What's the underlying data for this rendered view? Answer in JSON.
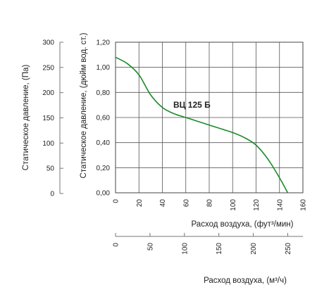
{
  "chart_data": {
    "type": "line",
    "series": [
      {
        "name": "ВЦ 125 Б",
        "color": "#1a8a2a",
        "x": [
          0,
          10,
          20,
          30,
          40,
          50,
          60,
          70,
          80,
          90,
          100,
          110,
          120,
          130,
          140,
          147
        ],
        "y": [
          1.08,
          1.03,
          0.94,
          0.78,
          0.68,
          0.63,
          0.6,
          0.57,
          0.54,
          0.51,
          0.48,
          0.44,
          0.38,
          0.27,
          0.12,
          0.0
        ]
      }
    ],
    "xlabel_top": "Расход воздуха, (фут³/мин)",
    "x_ticks": [
      "0",
      "20",
      "40",
      "60",
      "80",
      "100",
      "120",
      "140",
      "160"
    ],
    "xlim": [
      0,
      160
    ],
    "ylabel_inner": "Статическое давление, (дюйм вод. ст.)",
    "y_ticks": [
      "0,00",
      "0,20",
      "0,40",
      "0,60",
      "0,80",
      "1,00",
      "1,20"
    ],
    "ylim": [
      0,
      1.2
    ],
    "ylabel_outer": "Статическое давление, (Па)",
    "y2_ticks": [
      "0",
      "50",
      "100",
      "150",
      "200",
      "250",
      "300"
    ],
    "y2lim": [
      0,
      300
    ],
    "xlabel_bottom": "Расход воздуха, (м³/ч)",
    "x2_ticks": [
      "0",
      "50",
      "100",
      "150",
      "200",
      "250"
    ],
    "x2_values": [
      0,
      50,
      100,
      150,
      200,
      250
    ],
    "x2lim": [
      0,
      272
    ],
    "grid": true
  }
}
